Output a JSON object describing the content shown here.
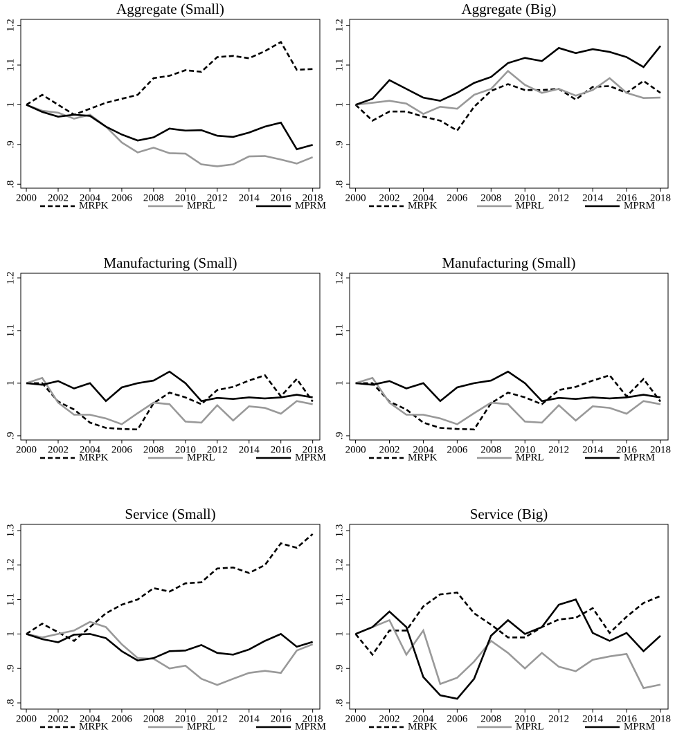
{
  "chart_data": [
    {
      "type": "line",
      "title": "Aggregate (Small)",
      "x": [
        2000,
        2001,
        2002,
        2003,
        2004,
        2005,
        2006,
        2007,
        2008,
        2009,
        2010,
        2011,
        2012,
        2013,
        2014,
        2015,
        2016,
        2017,
        2018
      ],
      "xlim": [
        1999.65,
        2018.45
      ],
      "xticks": [
        2000,
        2002,
        2004,
        2006,
        2008,
        2010,
        2012,
        2014,
        2016,
        2018
      ],
      "ylim": [
        0.79,
        1.215
      ],
      "yticks": [
        1.2,
        1.1,
        1,
        {
          "value": 0.9,
          "label": ".9"
        },
        {
          "value": 0.8,
          "label": ".8"
        }
      ],
      "series": [
        {
          "name": "MRPK",
          "color": "#000000",
          "style": "dashed",
          "values": [
            1.0,
            1.025,
            1.0,
            0.975,
            0.99,
            1.005,
            1.015,
            1.025,
            1.067,
            1.073,
            1.087,
            1.083,
            1.12,
            1.123,
            1.117,
            1.135,
            1.158,
            1.088,
            1.09
          ]
        },
        {
          "name": "MPRL",
          "color": "#999999",
          "style": "solid",
          "values": [
            1.0,
            0.985,
            0.98,
            0.965,
            0.975,
            0.945,
            0.905,
            0.88,
            0.892,
            0.878,
            0.877,
            0.85,
            0.845,
            0.85,
            0.87,
            0.871,
            0.862,
            0.852,
            0.868
          ]
        },
        {
          "name": "MPRM",
          "color": "#000000",
          "style": "solid",
          "values": [
            1.0,
            0.982,
            0.97,
            0.975,
            0.972,
            0.945,
            0.925,
            0.91,
            0.918,
            0.94,
            0.935,
            0.936,
            0.922,
            0.919,
            0.93,
            0.945,
            0.955,
            0.888,
            0.899
          ]
        }
      ]
    },
    {
      "type": "line",
      "title": "Aggregate (Big)",
      "x": [
        2000,
        2001,
        2002,
        2003,
        2004,
        2005,
        2006,
        2007,
        2008,
        2009,
        2010,
        2011,
        2012,
        2013,
        2014,
        2015,
        2016,
        2017,
        2018
      ],
      "xlim": [
        1999.65,
        2018.45
      ],
      "xticks": [
        2000,
        2002,
        2004,
        2006,
        2008,
        2010,
        2012,
        2014,
        2016,
        2018
      ],
      "ylim": [
        0.79,
        1.215
      ],
      "yticks": [
        1.2,
        1.1,
        1,
        {
          "value": 0.9,
          "label": ".9"
        },
        {
          "value": 0.8,
          "label": ".8"
        }
      ],
      "series": [
        {
          "name": "MRPK",
          "color": "#000000",
          "style": "dashed",
          "values": [
            1.0,
            0.96,
            0.983,
            0.983,
            0.97,
            0.96,
            0.935,
            0.995,
            1.035,
            1.052,
            1.037,
            1.037,
            1.04,
            1.013,
            1.045,
            1.047,
            1.03,
            1.06,
            1.03
          ]
        },
        {
          "name": "MPRL",
          "color": "#999999",
          "style": "solid",
          "values": [
            1.0,
            1.005,
            1.01,
            1.003,
            0.977,
            0.995,
            0.99,
            1.025,
            1.04,
            1.085,
            1.05,
            1.03,
            1.04,
            1.023,
            1.037,
            1.067,
            1.03,
            1.017,
            1.018
          ]
        },
        {
          "name": "MPRM",
          "color": "#000000",
          "style": "solid",
          "values": [
            1.0,
            1.015,
            1.062,
            1.04,
            1.018,
            1.01,
            1.03,
            1.055,
            1.07,
            1.105,
            1.118,
            1.11,
            1.143,
            1.13,
            1.14,
            1.133,
            1.12,
            1.095,
            1.148
          ]
        }
      ]
    },
    {
      "type": "line",
      "title": "Manufacturing (Small)",
      "x": [
        2000,
        2001,
        2002,
        2003,
        2004,
        2005,
        2006,
        2007,
        2008,
        2009,
        2010,
        2011,
        2012,
        2013,
        2014,
        2015,
        2016,
        2017,
        2018
      ],
      "xlim": [
        1999.65,
        2018.45
      ],
      "xticks": [
        2000,
        2002,
        2004,
        2006,
        2008,
        2010,
        2012,
        2014,
        2016,
        2018
      ],
      "ylim": [
        0.892,
        1.209
      ],
      "yticks": [
        1.2,
        1.1,
        1,
        {
          "value": 0.9,
          "label": ".9"
        }
      ],
      "series": [
        {
          "name": "MRPK",
          "color": "#000000",
          "style": "dashed",
          "values": [
            1.0,
            1.0,
            0.965,
            0.95,
            0.925,
            0.915,
            0.913,
            0.912,
            0.962,
            0.982,
            0.973,
            0.96,
            0.987,
            0.993,
            1.005,
            1.015,
            0.975,
            1.008,
            0.965
          ]
        },
        {
          "name": "MPRL",
          "color": "#999999",
          "style": "solid",
          "values": [
            1.0,
            1.01,
            0.963,
            0.94,
            0.94,
            0.933,
            0.922,
            0.943,
            0.963,
            0.96,
            0.927,
            0.925,
            0.958,
            0.929,
            0.956,
            0.953,
            0.942,
            0.966,
            0.96
          ]
        },
        {
          "name": "MPRM",
          "color": "#000000",
          "style": "solid",
          "values": [
            1.0,
            0.997,
            1.004,
            0.99,
            1.0,
            0.966,
            0.992,
            1.0,
            1.005,
            1.022,
            1.0,
            0.966,
            0.972,
            0.97,
            0.973,
            0.971,
            0.973,
            0.978,
            0.973
          ]
        }
      ]
    },
    {
      "type": "line",
      "title": "Manufacturing (Small)",
      "x": [
        2000,
        2001,
        2002,
        2003,
        2004,
        2005,
        2006,
        2007,
        2008,
        2009,
        2010,
        2011,
        2012,
        2013,
        2014,
        2015,
        2016,
        2017,
        2018
      ],
      "xlim": [
        1999.65,
        2018.45
      ],
      "xticks": [
        2000,
        2002,
        2004,
        2006,
        2008,
        2010,
        2012,
        2014,
        2016,
        2018
      ],
      "ylim": [
        0.892,
        1.209
      ],
      "yticks": [
        1.2,
        1.1,
        1,
        {
          "value": 0.9,
          "label": ".9"
        }
      ],
      "series": [
        {
          "name": "MRPK",
          "color": "#000000",
          "style": "dashed",
          "values": [
            1.0,
            1.0,
            0.965,
            0.95,
            0.925,
            0.915,
            0.913,
            0.912,
            0.962,
            0.982,
            0.973,
            0.96,
            0.987,
            0.993,
            1.005,
            1.015,
            0.975,
            1.008,
            0.965
          ]
        },
        {
          "name": "MPRL",
          "color": "#999999",
          "style": "solid",
          "values": [
            1.0,
            1.01,
            0.963,
            0.94,
            0.94,
            0.933,
            0.922,
            0.943,
            0.963,
            0.96,
            0.927,
            0.925,
            0.958,
            0.929,
            0.956,
            0.953,
            0.942,
            0.966,
            0.96
          ]
        },
        {
          "name": "MPRM",
          "color": "#000000",
          "style": "solid",
          "values": [
            1.0,
            0.997,
            1.004,
            0.99,
            1.0,
            0.966,
            0.992,
            1.0,
            1.005,
            1.022,
            1.0,
            0.966,
            0.972,
            0.97,
            0.973,
            0.971,
            0.973,
            0.978,
            0.973
          ]
        }
      ]
    },
    {
      "type": "line",
      "title": "Service (Small)",
      "x": [
        2000,
        2001,
        2002,
        2003,
        2004,
        2005,
        2006,
        2007,
        2008,
        2009,
        2010,
        2011,
        2012,
        2013,
        2014,
        2015,
        2016,
        2017,
        2018
      ],
      "xlim": [
        1999.65,
        2018.45
      ],
      "xticks": [
        2000,
        2002,
        2004,
        2006,
        2008,
        2010,
        2012,
        2014,
        2016,
        2018
      ],
      "ylim": [
        0.782,
        1.318
      ],
      "yticks": [
        1.3,
        1.2,
        1.1,
        1,
        {
          "value": 0.9,
          "label": ".9"
        },
        {
          "value": 0.8,
          "label": ".8"
        }
      ],
      "series": [
        {
          "name": "MRPK",
          "color": "#000000",
          "style": "dashed",
          "values": [
            1.0,
            1.03,
            1.005,
            0.98,
            1.02,
            1.06,
            1.085,
            1.1,
            1.133,
            1.123,
            1.147,
            1.15,
            1.19,
            1.193,
            1.177,
            1.2,
            1.263,
            1.25,
            1.29
          ]
        },
        {
          "name": "MPRL",
          "color": "#999999",
          "style": "solid",
          "values": [
            1.0,
            0.99,
            1.0,
            1.01,
            1.035,
            1.02,
            0.97,
            0.93,
            0.928,
            0.9,
            0.908,
            0.87,
            0.852,
            0.87,
            0.887,
            0.893,
            0.887,
            0.952,
            0.97
          ]
        },
        {
          "name": "MPRM",
          "color": "#000000",
          "style": "solid",
          "values": [
            1.0,
            0.985,
            0.976,
            0.998,
            1.0,
            0.988,
            0.95,
            0.923,
            0.93,
            0.95,
            0.952,
            0.968,
            0.945,
            0.94,
            0.955,
            0.98,
            1.0,
            0.963,
            0.977
          ]
        }
      ]
    },
    {
      "type": "line",
      "title": "Service (Big)",
      "x": [
        2000,
        2001,
        2002,
        2003,
        2004,
        2005,
        2006,
        2007,
        2008,
        2009,
        2010,
        2011,
        2012,
        2013,
        2014,
        2015,
        2016,
        2017,
        2018
      ],
      "xlim": [
        1999.65,
        2018.45
      ],
      "xticks": [
        2000,
        2002,
        2004,
        2006,
        2008,
        2010,
        2012,
        2014,
        2016,
        2018
      ],
      "ylim": [
        0.782,
        1.318
      ],
      "yticks": [
        1.3,
        1.2,
        1.1,
        1,
        {
          "value": 0.9,
          "label": ".9"
        },
        {
          "value": 0.8,
          "label": ".8"
        }
      ],
      "series": [
        {
          "name": "MRPK",
          "color": "#000000",
          "style": "dashed",
          "values": [
            1.0,
            0.94,
            1.01,
            1.01,
            1.08,
            1.115,
            1.12,
            1.06,
            1.027,
            0.99,
            0.99,
            1.02,
            1.042,
            1.047,
            1.075,
            1.003,
            1.05,
            1.09,
            1.11
          ]
        },
        {
          "name": "MPRL",
          "color": "#999999",
          "style": "solid",
          "values": [
            1.0,
            1.02,
            1.04,
            0.94,
            1.01,
            0.855,
            0.873,
            0.92,
            0.98,
            0.945,
            0.9,
            0.945,
            0.905,
            0.892,
            0.925,
            0.935,
            0.942,
            0.843,
            0.853
          ]
        },
        {
          "name": "MPRM",
          "color": "#000000",
          "style": "solid",
          "values": [
            1.0,
            1.02,
            1.065,
            1.02,
            0.875,
            0.822,
            0.812,
            0.87,
            0.995,
            1.04,
            1.0,
            1.02,
            1.085,
            1.1,
            1.003,
            0.98,
            1.003,
            0.95,
            0.995
          ]
        }
      ]
    }
  ]
}
